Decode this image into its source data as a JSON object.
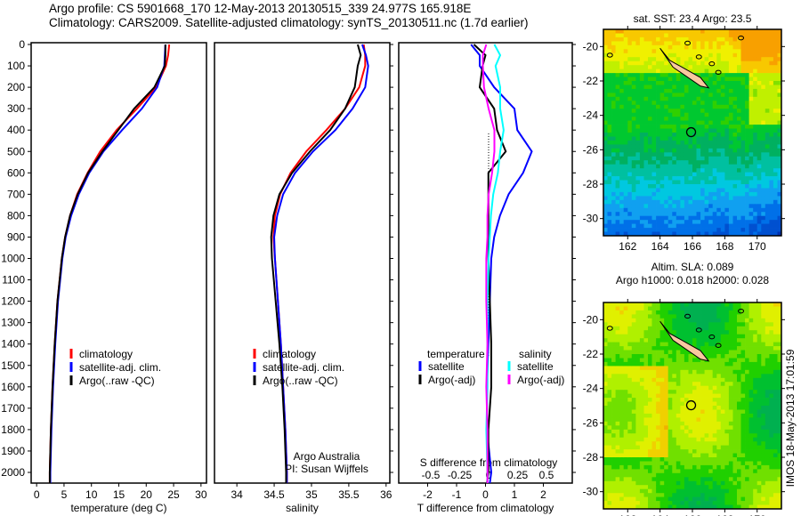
{
  "header": {
    "line1": "Argo profile: CS 5901668_170 12-May-2013 20130515_339 24.977S 165.918E",
    "line2": "Climatology: CARS2009. Satellite-adjusted climatology: synTS_20130511.nc (1.7d earlier)"
  },
  "stamp": "IMOS 18-May-2013 17:01:59",
  "colors": {
    "climatology": "#ff0000",
    "satellite": "#0000ff",
    "argo": "#000000",
    "sal_satellite": "#00ffff",
    "sal_argo": "#ff00ff"
  },
  "chart_data": [
    {
      "type": "line",
      "xlabel": "temperature (deg C)",
      "ylabel": "",
      "xlim": [
        -1,
        31
      ],
      "ylim": [
        2050,
        0
      ],
      "xticks": [
        "0",
        "5",
        "10",
        "15",
        "20",
        "25",
        "30"
      ],
      "xtick_values": [
        0,
        5,
        10,
        15,
        20,
        25,
        30
      ],
      "yticks": [
        "0",
        "100",
        "200",
        "300",
        "400",
        "500",
        "600",
        "700",
        "800",
        "900",
        "1000",
        "1100",
        "1200",
        "1300",
        "1400",
        "1500",
        "1600",
        "1700",
        "1800",
        "1900",
        "2000"
      ],
      "depth": [
        0,
        50,
        100,
        200,
        300,
        400,
        500,
        600,
        700,
        800,
        900,
        1000,
        1200,
        1400,
        1600,
        1800,
        2000,
        2050
      ],
      "series": [
        {
          "name": "climatology",
          "color": "#ff0000",
          "values": [
            24.2,
            24,
            23.6,
            21.8,
            18.3,
            14.6,
            11.6,
            9.3,
            7.4,
            6.1,
            5.2,
            4.6,
            3.8,
            3.3,
            2.9,
            2.6,
            2.4,
            2.4
          ]
        },
        {
          "name": "satellite-adj. clim.",
          "color": "#0000ff",
          "values": [
            23.5,
            23.4,
            23.3,
            22,
            19.2,
            15.6,
            12.2,
            9.6,
            7.7,
            6.3,
            5.3,
            4.7,
            3.9,
            3.4,
            3,
            2.7,
            2.5,
            2.5
          ]
        },
        {
          "name": "Argo(..raw -QC)",
          "color": "#000000",
          "values": [
            23.5,
            23.5,
            23.4,
            21.5,
            17.8,
            14.9,
            12,
            9.4,
            7.5,
            6.1,
            5.2,
            4.6,
            3.8,
            3.3,
            2.9,
            2.6,
            2.4,
            2.4
          ]
        }
      ]
    },
    {
      "type": "line",
      "xlabel": "salinity",
      "xlim": [
        33.7,
        36.05
      ],
      "ylim": [
        2050,
        0
      ],
      "xticks": [
        "34",
        "34.5",
        "35",
        "35.5",
        "36"
      ],
      "xtick_values": [
        34,
        34.5,
        35,
        35.5,
        36
      ],
      "annotation": [
        "Argo Australia",
        "PI: Susan Wijffels"
      ],
      "depth": [
        0,
        50,
        100,
        200,
        300,
        400,
        500,
        600,
        700,
        800,
        900,
        1000,
        1200,
        1400,
        1600,
        1800,
        2000,
        2050
      ],
      "series": [
        {
          "name": "climatology",
          "color": "#ff0000",
          "values": [
            35.7,
            35.72,
            35.72,
            35.64,
            35.45,
            35.2,
            34.93,
            34.72,
            34.58,
            34.51,
            34.49,
            34.51,
            34.55,
            34.59,
            34.62,
            34.65,
            34.67,
            34.67
          ]
        },
        {
          "name": "satellite-adj. clim.",
          "color": "#0000ff",
          "values": [
            35.68,
            35.73,
            35.76,
            35.72,
            35.55,
            35.32,
            35.02,
            34.78,
            34.62,
            34.54,
            34.5,
            34.51,
            34.55,
            34.59,
            34.62,
            34.65,
            34.67,
            34.67
          ]
        },
        {
          "name": "Argo(..raw -QC)",
          "color": "#000000",
          "values": [
            35.62,
            35.66,
            35.62,
            35.58,
            35.45,
            35.25,
            34.98,
            34.74,
            34.57,
            34.49,
            34.46,
            34.47,
            34.52,
            34.57,
            34.61,
            34.64,
            34.66,
            34.66
          ]
        }
      ]
    },
    {
      "type": "line",
      "xlabel": "T difference from climatology",
      "x2label": "S difference from climatology",
      "xlim": [
        -3,
        3
      ],
      "ylim": [
        2050,
        0
      ],
      "xticks": [
        "-2",
        "-1",
        "0",
        "1",
        "2"
      ],
      "xtick_values": [
        -2,
        -1,
        0,
        1,
        2
      ],
      "x2ticks": [
        "-0.5",
        "-0.25",
        "0",
        "0.25",
        "0.5"
      ],
      "x2tick_values": [
        -0.5,
        -0.25,
        0,
        0.25,
        0.5
      ],
      "legend": {
        "temperature": "temperature",
        "salinity": "salinity"
      },
      "depth": [
        0,
        50,
        100,
        200,
        300,
        400,
        500,
        600,
        700,
        800,
        900,
        1000,
        1200,
        1400,
        1600,
        1800,
        2000,
        2050
      ],
      "series": [
        {
          "name": "satellite",
          "group": "temperature",
          "color": "#0000ff",
          "values": [
            -0.5,
            -0.2,
            -0.2,
            0.3,
            1,
            1.1,
            1.6,
            1.3,
            0.8,
            0.5,
            0.3,
            0.2,
            0.15,
            0.1,
            0.05,
            0.05,
            0.2,
            0.15
          ]
        },
        {
          "name": "Argo(-adj)",
          "group": "temperature",
          "color": "#000000",
          "values": [
            -0.4,
            0,
            -0.1,
            -0.2,
            0.3,
            0.4,
            0.7,
            0.1,
            0.1,
            0.1,
            0.1,
            0.1,
            0.15,
            0.2,
            0.2,
            0.1,
            0.1,
            0.05
          ]
        },
        {
          "name": "satellite",
          "group": "salinity",
          "color": "#00ffff",
          "values": [
            0.05,
            0.1,
            0.06,
            0.1,
            0.1,
            0.13,
            0.1,
            0.08,
            0.04,
            0.02,
            0.01,
            0.0,
            -0.01,
            -0.01,
            -0.01,
            -0.02,
            -0.01,
            -0.01
          ]
        },
        {
          "name": "Argo(-adj)",
          "group": "salinity",
          "color": "#ff00ff",
          "values": [
            -0.02,
            -0.05,
            -0.05,
            -0.04,
            0.0,
            0.05,
            0.05,
            0.03,
            0.0,
            -0.01,
            -0.01,
            -0.02,
            -0.02,
            -0.01,
            -0.02,
            -0.01,
            -0.01,
            -0.01
          ]
        }
      ]
    },
    {
      "type": "heatmap",
      "title": "sat. SST: 23.4 Argo: 23.5",
      "xlim": [
        160.5,
        171.5
      ],
      "ylim": [
        -31,
        -19
      ],
      "xticks": [
        "162",
        "164",
        "166",
        "168",
        "170"
      ],
      "xtick_values": [
        162,
        164,
        166,
        168,
        170
      ],
      "yticks": [
        "-20",
        "-22",
        "-24",
        "-26",
        "-28",
        "-30"
      ],
      "ytick_values": [
        -20,
        -22,
        -24,
        -26,
        -28,
        -30
      ],
      "argo_position": [
        165.918,
        -24.977
      ]
    },
    {
      "type": "heatmap",
      "title": "Altim. SLA: 0.089",
      "subtitle": "Argo h1000: 0.018 h2000: 0.028",
      "xlim": [
        160.5,
        171.5
      ],
      "ylim": [
        -31,
        -19
      ],
      "xticks": [
        "162",
        "164",
        "166",
        "168",
        "170"
      ],
      "xtick_values": [
        162,
        164,
        166,
        168,
        170
      ],
      "yticks": [
        "-20",
        "-22",
        "-24",
        "-26",
        "-28",
        "-30"
      ],
      "ytick_values": [
        -20,
        -22,
        -24,
        -26,
        -28,
        -30
      ],
      "argo_position": [
        165.918,
        -24.977
      ]
    }
  ]
}
